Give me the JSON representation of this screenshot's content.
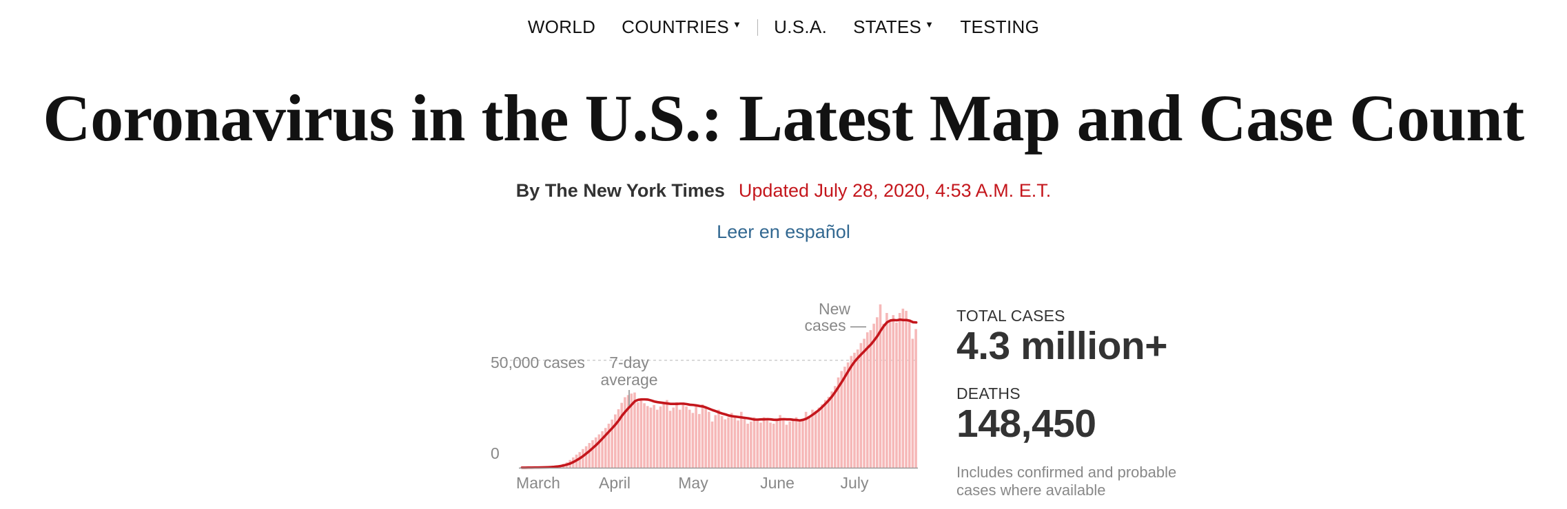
{
  "nav": {
    "items": [
      {
        "label": "WORLD",
        "dropdown": false
      },
      {
        "label": "COUNTRIES",
        "dropdown": true
      },
      {
        "label": "U.S.A.",
        "dropdown": false
      },
      {
        "label": "STATES",
        "dropdown": true
      },
      {
        "label": "TESTING",
        "dropdown": false
      }
    ],
    "caret": "▼"
  },
  "headline": "Coronavirus in the U.S.: Latest Map and Case Count",
  "byline": "By The New York Times",
  "updated": "Updated July 28, 2020, 4:53 A.M. E.T.",
  "spanish_link": "Leer en español",
  "stats": {
    "total_label": "TOTAL CASES",
    "total_value": "4.3 million+",
    "deaths_label": "DEATHS",
    "deaths_value": "148,450",
    "note": "Includes confirmed and probable cases where available"
  },
  "colors": {
    "bar": "#f6b8b8",
    "line": "#c4161c",
    "accent_red": "#c4161c",
    "link_blue": "#326891",
    "gray_text": "#888888"
  },
  "chart_data": {
    "type": "bar",
    "ylim": [
      0,
      80000
    ],
    "ticks": [
      {
        "value": 0,
        "label": "0"
      },
      {
        "value": 50000,
        "label": "50,000 cases"
      }
    ],
    "x_labels": [
      "March",
      "April",
      "May",
      "June",
      "July"
    ],
    "annotations": {
      "seven_day": [
        "7-day",
        "average"
      ],
      "new_cases": [
        "New",
        "cases —"
      ]
    },
    "series": [
      {
        "name": "New cases",
        "values": [
          25,
          60,
          80,
          110,
          130,
          160,
          200,
          260,
          330,
          450,
          600,
          900,
          1300,
          1800,
          2500,
          3600,
          4800,
          6100,
          7300,
          8700,
          10000,
          11500,
          12800,
          14100,
          15500,
          17000,
          18500,
          20500,
          22400,
          24800,
          27200,
          30200,
          32800,
          33800,
          34500,
          35000,
          30500,
          32000,
          30000,
          28700,
          28000,
          29200,
          27000,
          28500,
          30000,
          31500,
          26500,
          28000,
          30500,
          27000,
          30000,
          28500,
          27000,
          25500,
          29000,
          25000,
          29500,
          28000,
          26000,
          21500,
          24500,
          27000,
          24000,
          22500,
          23500,
          25500,
          24000,
          22000,
          26000,
          23000,
          20500,
          21500,
          23500,
          22000,
          21000,
          23500,
          22500,
          21000,
          20500,
          22000,
          24500,
          22500,
          20000,
          21500,
          22000,
          23500,
          21500,
          22000,
          26000,
          24000,
          27000,
          26500,
          28000,
          29500,
          31500,
          33000,
          35500,
          38000,
          42000,
          45000,
          47000,
          49000,
          52000,
          53500,
          55000,
          58000,
          60000,
          63000,
          64000,
          67000,
          70000,
          76000,
          67000,
          72000,
          68000,
          71000,
          67500,
          72000,
          74000,
          73000,
          69000,
          60000,
          64500
        ]
      },
      {
        "name": "7-day average",
        "values": [
          25,
          35,
          50,
          65,
          85,
          110,
          140,
          180,
          230,
          310,
          410,
          570,
          800,
          1100,
          1500,
          2000,
          2700,
          3550,
          4450,
          5500,
          6700,
          7900,
          9250,
          10600,
          12100,
          13700,
          15300,
          16900,
          18500,
          20200,
          22100,
          24300,
          26100,
          27800,
          29400,
          31000,
          31600,
          31800,
          31800,
          31700,
          31300,
          30800,
          30500,
          30300,
          30100,
          29900,
          29700,
          29700,
          29700,
          29800,
          29800,
          29600,
          29300,
          29200,
          29000,
          28700,
          28500,
          28000,
          27400,
          26800,
          26300,
          25700,
          25200,
          24800,
          24300,
          24000,
          23800,
          23600,
          23400,
          23200,
          23000,
          22700,
          22400,
          22400,
          22500,
          22500,
          22600,
          22500,
          22300,
          22300,
          22500,
          22600,
          22500,
          22500,
          22300,
          22200,
          22000,
          22300,
          22800,
          23700,
          24700,
          25800,
          27000,
          28400,
          29900,
          31500,
          33300,
          35400,
          37700,
          40000,
          42500,
          45000,
          47400,
          49500,
          51200,
          52800,
          54300,
          55900,
          57400,
          59300,
          61300,
          63800,
          66000,
          67700,
          68500,
          68700,
          68600,
          68900,
          68700,
          68700,
          68400,
          67700,
          67600
        ]
      }
    ]
  }
}
